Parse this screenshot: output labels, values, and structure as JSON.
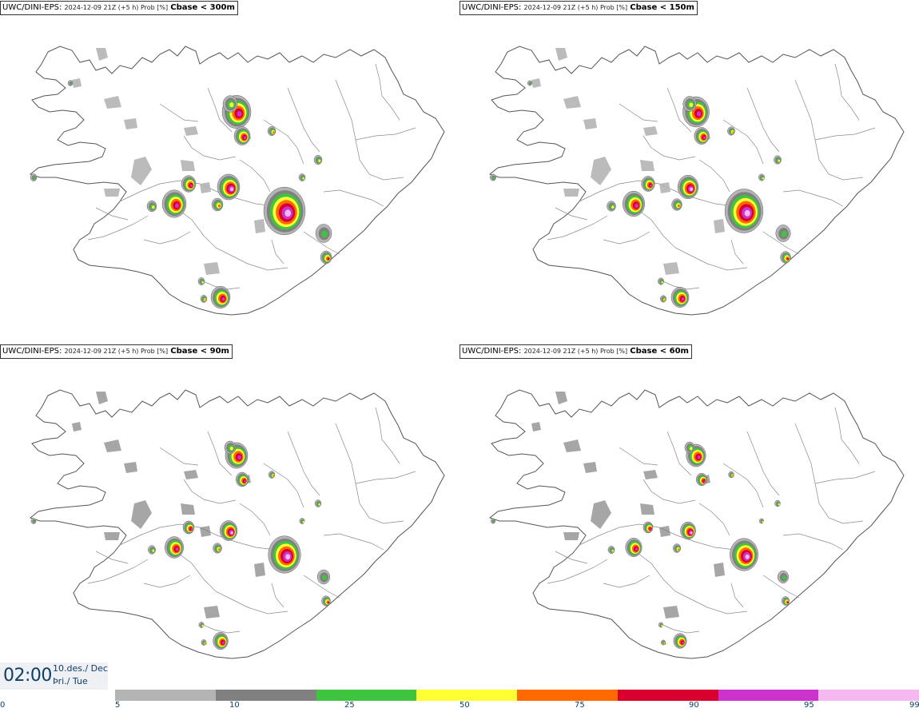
{
  "panels": [
    {
      "model": "UWC/DINI-EPS",
      "run": "2024-12-09 21Z (+5 h) Prob [%]",
      "variable": "Cbase < 300m"
    },
    {
      "model": "UWC/DINI-EPS",
      "run": "2024-12-09 21Z (+5 h) Prob [%]",
      "variable": "Cbase < 150m"
    },
    {
      "model": "UWC/DINI-EPS",
      "run": "2024-12-09 21Z (+5 h) Prob [%]",
      "variable": "Cbase < 90m"
    },
    {
      "model": "UWC/DINI-EPS",
      "run": "2024-12-09 21Z (+5 h) Prob [%]",
      "variable": "Cbase < 60m"
    }
  ],
  "valid_time": {
    "time": "02:00",
    "date": "10.des./ Dec",
    "weekday": "Þri./ Tue"
  },
  "colorbar": {
    "ticks": [
      "0",
      "5",
      "10",
      "25",
      "50",
      "75",
      "90",
      "95",
      "99"
    ],
    "colors": [
      "#b4b4b4",
      "#808080",
      "#3ec43e",
      "#ffff33",
      "#ff6a00",
      "#d9002e",
      "#cc33cc",
      "#f5b8f0"
    ]
  },
  "colors": {
    "coast": "#555555",
    "background": "#ffffff",
    "text": "#0c3f67"
  }
}
